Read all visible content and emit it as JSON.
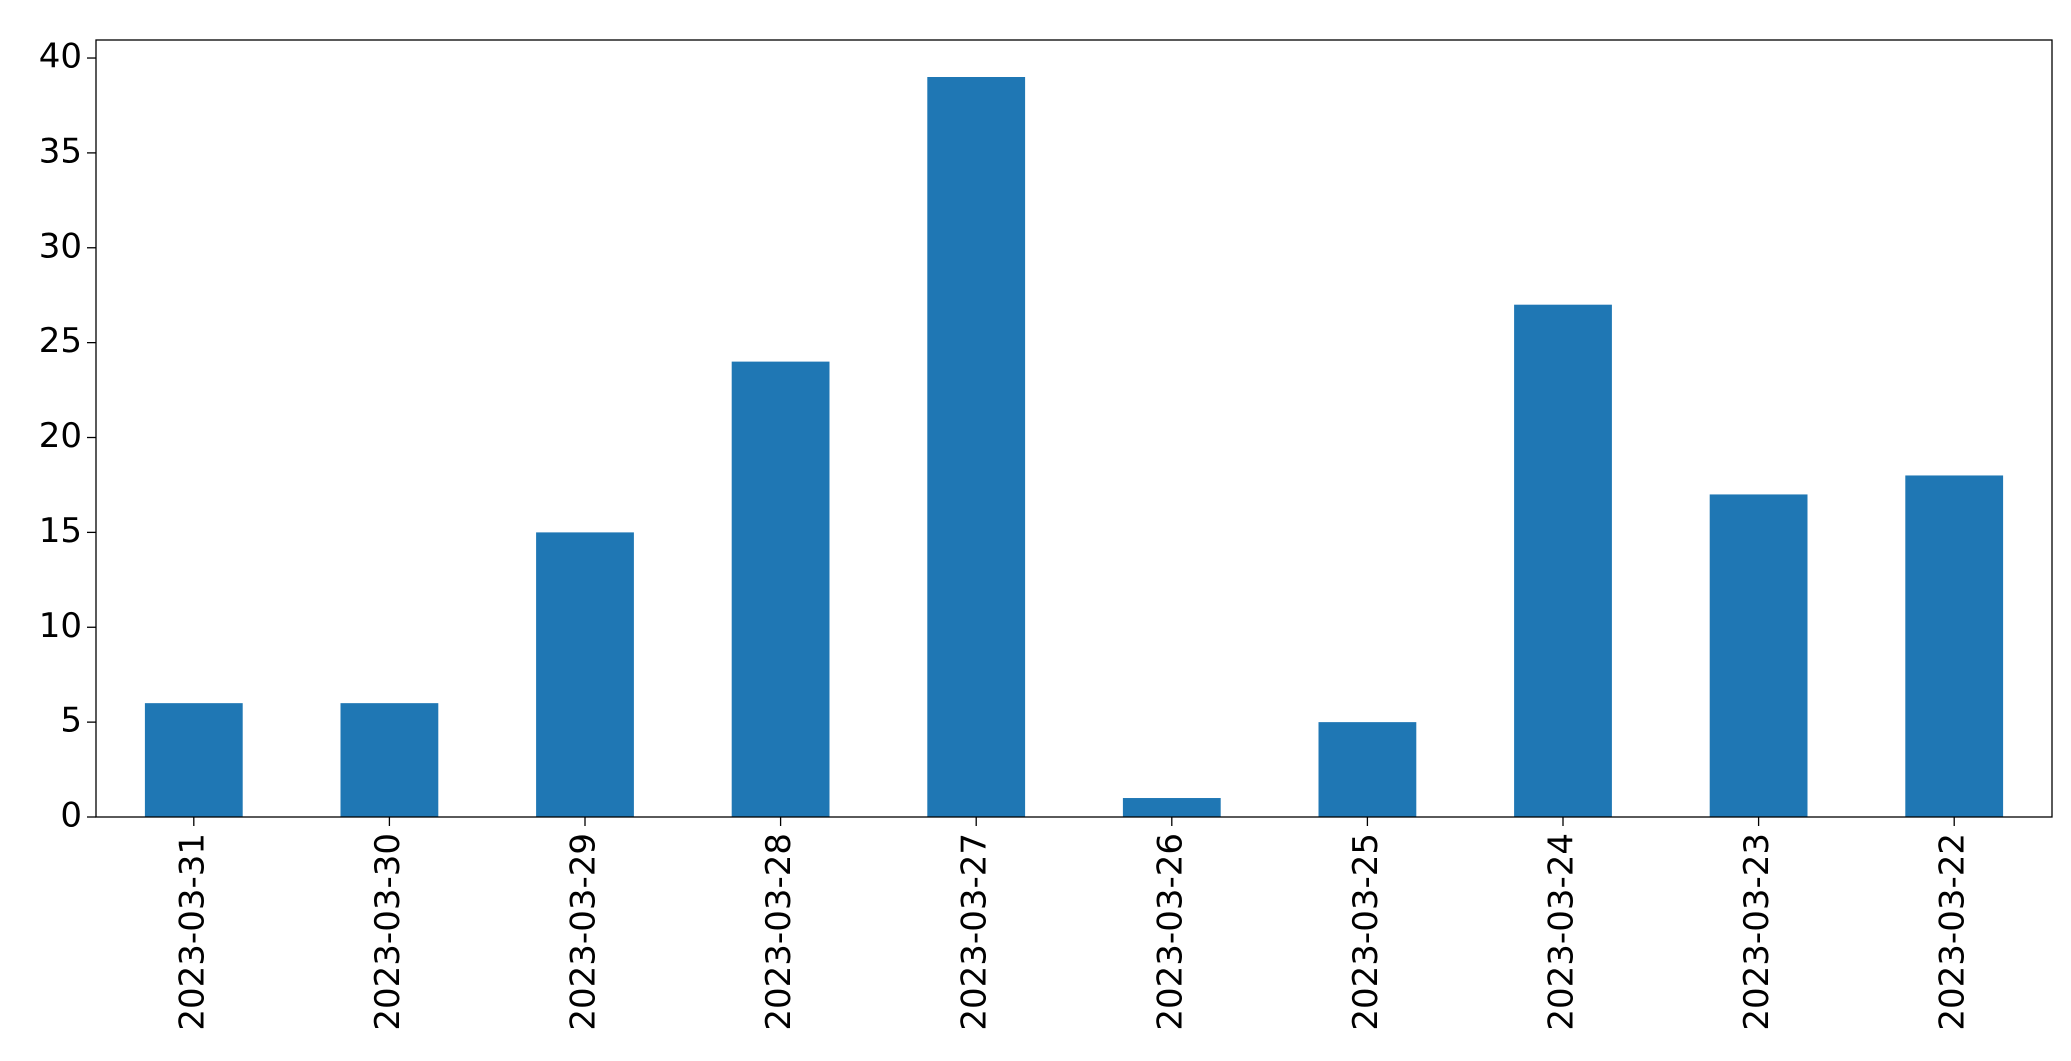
{
  "chart_data": {
    "type": "bar",
    "categories": [
      "2023-03-31",
      "2023-03-30",
      "2023-03-29",
      "2023-03-28",
      "2023-03-27",
      "2023-03-26",
      "2023-03-25",
      "2023-03-24",
      "2023-03-23",
      "2023-03-22"
    ],
    "values": [
      6,
      6,
      15,
      24,
      39,
      1,
      5,
      27,
      17,
      18
    ],
    "color": "#1f77b4",
    "ylim": [
      0,
      40.95
    ],
    "yticks": [
      0,
      5,
      10,
      15,
      20,
      25,
      30,
      35,
      40
    ],
    "grid": false
  }
}
